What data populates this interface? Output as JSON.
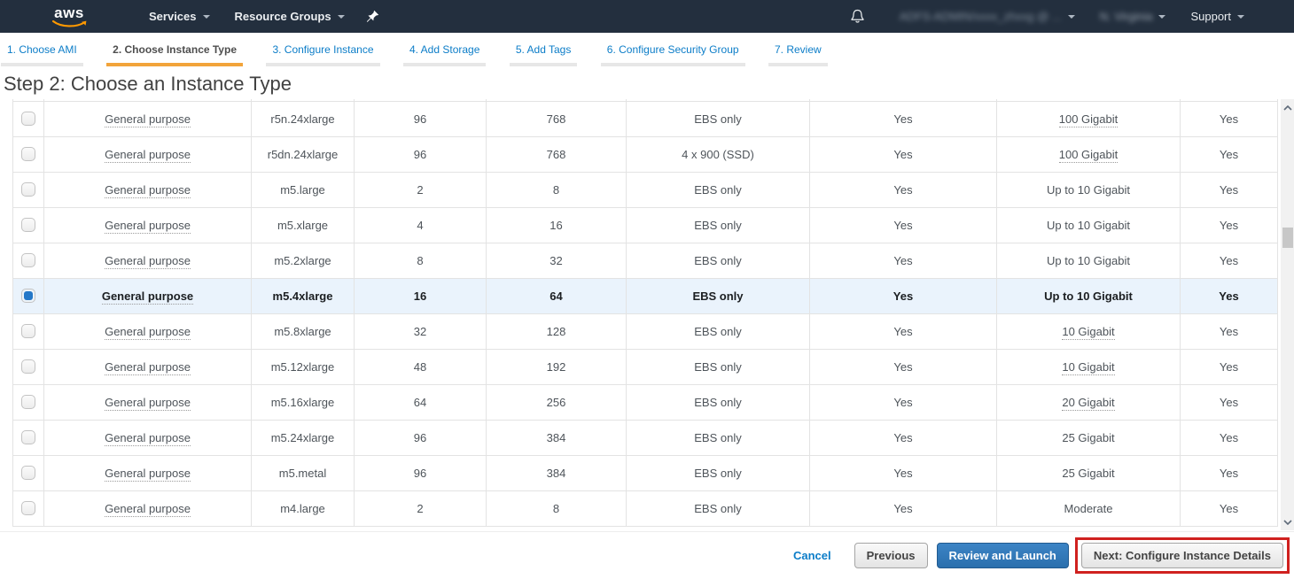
{
  "navbar": {
    "logo_text": "aws",
    "services_label": "Services",
    "resource_groups_label": "Resource Groups",
    "account_redacted": "ADFS-ADMIN/xxxx_zhxxg @ ...",
    "region_redacted": "N. Virginia",
    "support_label": "Support",
    "icons": [
      "pushpin-icon",
      "bell-icon"
    ]
  },
  "wizard_tabs": [
    {
      "label": "1. Choose AMI",
      "active": false
    },
    {
      "label": "2. Choose Instance Type",
      "active": true
    },
    {
      "label": "3. Configure Instance",
      "active": false
    },
    {
      "label": "4. Add Storage",
      "active": false
    },
    {
      "label": "5. Add Tags",
      "active": false
    },
    {
      "label": "6. Configure Security Group",
      "active": false
    },
    {
      "label": "7. Review",
      "active": false
    }
  ],
  "page_title": "Step 2: Choose an Instance Type",
  "table": {
    "rows": [
      {
        "family": "General purpose",
        "type": "r5n.24xlarge",
        "vcpus": "96",
        "memory": "768",
        "storage": "EBS only",
        "ebs_optimized": "Yes",
        "network": "100 Gigabit",
        "network_tooltip": true,
        "ipv6": "Yes",
        "selected": false
      },
      {
        "family": "General purpose",
        "type": "r5dn.24xlarge",
        "vcpus": "96",
        "memory": "768",
        "storage": "4 x 900 (SSD)",
        "ebs_optimized": "Yes",
        "network": "100 Gigabit",
        "network_tooltip": true,
        "ipv6": "Yes",
        "selected": false
      },
      {
        "family": "General purpose",
        "type": "m5.large",
        "vcpus": "2",
        "memory": "8",
        "storage": "EBS only",
        "ebs_optimized": "Yes",
        "network": "Up to 10 Gigabit",
        "network_tooltip": false,
        "ipv6": "Yes",
        "selected": false
      },
      {
        "family": "General purpose",
        "type": "m5.xlarge",
        "vcpus": "4",
        "memory": "16",
        "storage": "EBS only",
        "ebs_optimized": "Yes",
        "network": "Up to 10 Gigabit",
        "network_tooltip": false,
        "ipv6": "Yes",
        "selected": false
      },
      {
        "family": "General purpose",
        "type": "m5.2xlarge",
        "vcpus": "8",
        "memory": "32",
        "storage": "EBS only",
        "ebs_optimized": "Yes",
        "network": "Up to 10 Gigabit",
        "network_tooltip": false,
        "ipv6": "Yes",
        "selected": false
      },
      {
        "family": "General purpose",
        "type": "m5.4xlarge",
        "vcpus": "16",
        "memory": "64",
        "storage": "EBS only",
        "ebs_optimized": "Yes",
        "network": "Up to 10 Gigabit",
        "network_tooltip": false,
        "ipv6": "Yes",
        "selected": true
      },
      {
        "family": "General purpose",
        "type": "m5.8xlarge",
        "vcpus": "32",
        "memory": "128",
        "storage": "EBS only",
        "ebs_optimized": "Yes",
        "network": "10 Gigabit",
        "network_tooltip": true,
        "ipv6": "Yes",
        "selected": false
      },
      {
        "family": "General purpose",
        "type": "m5.12xlarge",
        "vcpus": "48",
        "memory": "192",
        "storage": "EBS only",
        "ebs_optimized": "Yes",
        "network": "10 Gigabit",
        "network_tooltip": true,
        "ipv6": "Yes",
        "selected": false
      },
      {
        "family": "General purpose",
        "type": "m5.16xlarge",
        "vcpus": "64",
        "memory": "256",
        "storage": "EBS only",
        "ebs_optimized": "Yes",
        "network": "20 Gigabit",
        "network_tooltip": true,
        "ipv6": "Yes",
        "selected": false
      },
      {
        "family": "General purpose",
        "type": "m5.24xlarge",
        "vcpus": "96",
        "memory": "384",
        "storage": "EBS only",
        "ebs_optimized": "Yes",
        "network": "25 Gigabit",
        "network_tooltip": false,
        "ipv6": "Yes",
        "selected": false
      },
      {
        "family": "General purpose",
        "type": "m5.metal",
        "vcpus": "96",
        "memory": "384",
        "storage": "EBS only",
        "ebs_optimized": "Yes",
        "network": "25 Gigabit",
        "network_tooltip": false,
        "ipv6": "Yes",
        "selected": false
      },
      {
        "family": "General purpose",
        "type": "m4.large",
        "vcpus": "2",
        "memory": "8",
        "storage": "EBS only",
        "ebs_optimized": "Yes",
        "network": "Moderate",
        "network_tooltip": false,
        "ipv6": "Yes",
        "selected": false
      }
    ]
  },
  "footer": {
    "cancel_label": "Cancel",
    "previous_label": "Previous",
    "review_label": "Review and Launch",
    "next_label": "Next: Configure Instance Details"
  },
  "colors": {
    "navbar_bg": "#232f3e",
    "aws_orange": "#ff9900",
    "link_blue": "#0c7dc8",
    "active_tab_orange": "#f2a43a",
    "selected_row_bg": "#eaf3fc",
    "checkbox_blue": "#2478c8",
    "primary_button_blue": "#2e77b8",
    "annotation_red": "#d0211f"
  }
}
